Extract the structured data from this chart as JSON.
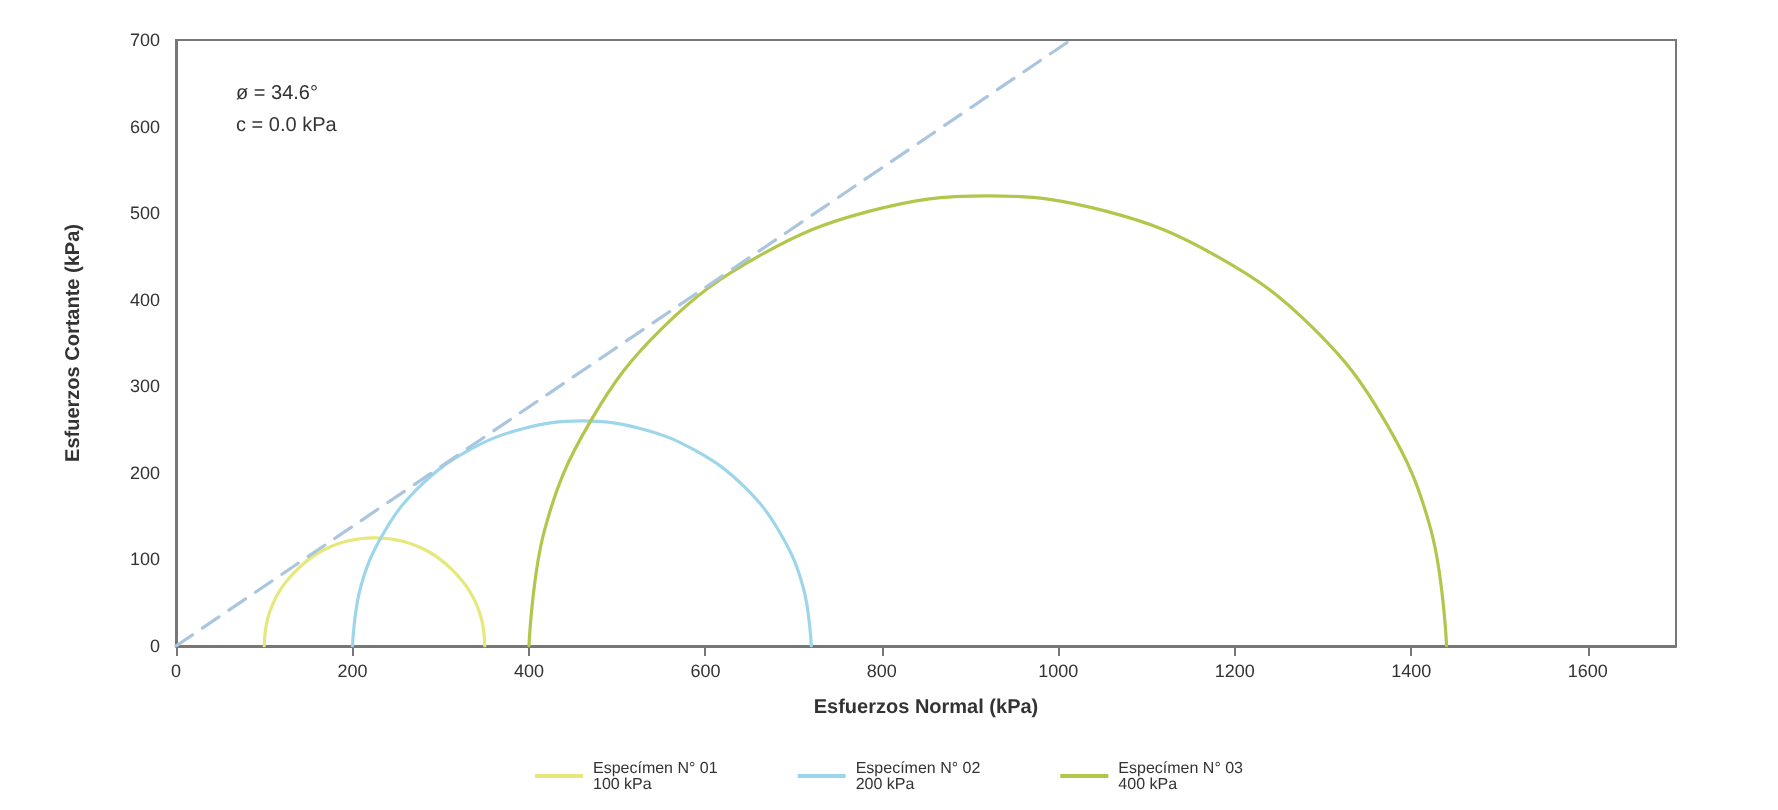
{
  "chart_data": {
    "type": "line",
    "xlabel": "Esfuerzos Normal (kPa)",
    "ylabel": "Esfuerzos Cortante (kPa)",
    "annotations": [
      "ø = 34.6°",
      "c = 0.0 kPa"
    ],
    "xlim": [
      0,
      1700
    ],
    "xticks": [
      0,
      200,
      400,
      600,
      800,
      1000,
      1200,
      1400,
      1600
    ],
    "ylim": [
      0,
      700
    ],
    "yticks": [
      0,
      100,
      200,
      300,
      400,
      500,
      600,
      700
    ],
    "grid": false,
    "legend": "bottom",
    "marker": "none",
    "series": [
      {
        "name": "Especímen N° 01\n100 kPa",
        "color": "#e6e87c",
        "x": [
          100,
          104,
          117,
          137,
          162,
          193,
          225,
          257,
          288,
          313,
          333,
          346,
          350
        ],
        "values": [
          0,
          32,
          63,
          88,
          108,
          121,
          125,
          121,
          108,
          88,
          63,
          32,
          0
        ]
      },
      {
        "name": "Especímen N° 02\n200 kPa",
        "color": "#9dd6ea",
        "x": [
          200,
          209,
          235,
          276,
          330,
          393,
          460,
          527,
          590,
          644,
          685,
          711,
          720
        ],
        "values": [
          0,
          67,
          130,
          184,
          225,
          251,
          260,
          251,
          225,
          184,
          130,
          67,
          0
        ]
      },
      {
        "name": "Especímen N° 03\n400 kPa",
        "color": "#b3c54a",
        "x": [
          400,
          418,
          470,
          552,
          660,
          785,
          920,
          1055,
          1180,
          1288,
          1370,
          1422,
          1440
        ],
        "values": [
          0,
          135,
          260,
          368,
          450,
          502,
          520,
          502,
          450,
          368,
          260,
          135,
          0
        ]
      },
      {
        "color": "#a9c6de",
        "line_style": "dashed",
        "x": [
          0,
          1014
        ],
        "values": [
          0,
          700
        ]
      }
    ]
  }
}
